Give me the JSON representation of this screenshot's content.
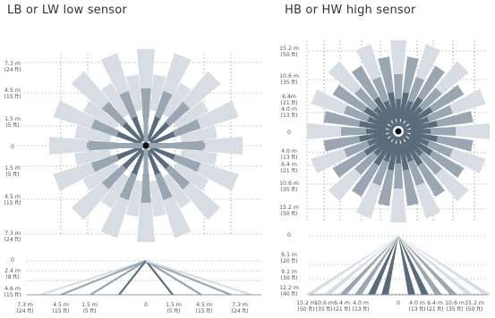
{
  "left": {
    "title": "LB or LW low sensor",
    "y_labels": [
      {
        "m": "7.3 m",
        "ft": "(24 ft)"
      },
      {
        "m": "4.5 m",
        "ft": "(15 ft)"
      },
      {
        "m": "1.5 m",
        "ft": "(5 ft)"
      },
      {
        "m": "0",
        "ft": ""
      },
      {
        "m": "1.5 m",
        "ft": "(5 ft)"
      },
      {
        "m": "4.5 m",
        "ft": "(15 ft)"
      },
      {
        "m": "7.3 m",
        "ft": "(24 ft)"
      }
    ],
    "side_labels": [
      {
        "m": "0",
        "ft": ""
      },
      {
        "m": "2.4 m",
        "ft": "(8 ft)"
      },
      {
        "m": "4.6 m",
        "ft": "(15 ft)"
      }
    ],
    "x_labels": [
      {
        "m": "7.3 m",
        "ft": "(24 ft)"
      },
      {
        "m": "4.5 m",
        "ft": "(15 ft)"
      },
      {
        "m": "1.5 m",
        "ft": "(5 ft)"
      },
      {
        "m": "0",
        "ft": ""
      },
      {
        "m": "1.5 m",
        "ft": "(5 ft)"
      },
      {
        "m": "4.5 m",
        "ft": "(15 ft)"
      },
      {
        "m": "7.3 m",
        "ft": "(24 ft)"
      }
    ]
  },
  "right": {
    "title": "HB or HW high sensor",
    "y_labels": [
      {
        "m": "15.2 m",
        "ft": "(50 ft)"
      },
      {
        "m": "10.6 m",
        "ft": "(35 ft)"
      },
      {
        "m": "6.4m",
        "ft": "(21 ft)"
      },
      {
        "m": "4.0 m",
        "ft": "(13 ft)"
      },
      {
        "m": "0",
        "ft": ""
      },
      {
        "m": "4.0 m",
        "ft": "(13 ft)"
      },
      {
        "m": "6.4 m",
        "ft": "(21 ft)"
      },
      {
        "m": "10.6 m",
        "ft": "(35 ft)"
      },
      {
        "m": "15.2 m",
        "ft": "(50 ft)"
      }
    ],
    "side_labels": [
      {
        "m": "0",
        "ft": ""
      },
      {
        "m": "6.1 m",
        "ft": "(20 ft)"
      },
      {
        "m": "9.1 m",
        "ft": "(30 ft)"
      },
      {
        "m": "12.2 m",
        "ft": "(40 ft)"
      }
    ],
    "x_labels": [
      {
        "m": "15.2 m",
        "ft": "(50 ft)"
      },
      {
        "m": "10.6 m",
        "ft": "(35 ft)"
      },
      {
        "m": "6.4 m",
        "ft": "(21 ft)"
      },
      {
        "m": "4.0 m",
        "ft": "(13 ft)"
      },
      {
        "m": "0",
        "ft": ""
      },
      {
        "m": "4.0 m",
        "ft": "(13 ft)"
      },
      {
        "m": "6.4 m",
        "ft": "(21 ft)"
      },
      {
        "m": "10.6 m",
        "ft": "(35 ft)"
      },
      {
        "m": "15.2 m",
        "ft": "(50 ft)"
      }
    ]
  },
  "colors": {
    "light": "#d7dde3",
    "mid": "#9aa7b3",
    "dark": "#5a6b7c",
    "hub": "#111111",
    "grid": "#9a9a9a"
  }
}
